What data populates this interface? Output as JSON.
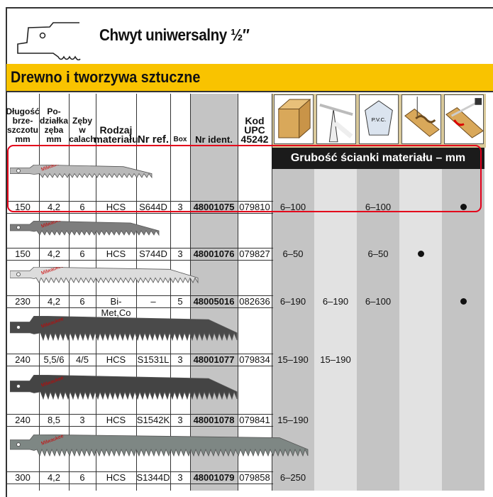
{
  "title": "Chwyt uniwersalny ½″",
  "category": "Drewno i tworzywa sztuczne",
  "headers": [
    "Długość brze- szczotu mm",
    "Po- działka zęba mm",
    "Zęby w calach",
    "Rodzaj materiału",
    "Nr ref.",
    "Box",
    "Nr ident.",
    "Kod UPC 45242"
  ],
  "application_icons": [
    "wood-beam-icon",
    "branch-icon",
    "pvc-icon",
    "curve-cut-icon",
    "plunge-cut-icon"
  ],
  "pvc_label": "P.V.C.",
  "thickness_header": "Grubość ścianki materiału – mm",
  "colors": {
    "yellow": "#f9c300",
    "highlight": "#e3001b",
    "gray_col": "#c4c4c4"
  },
  "rows": [
    {
      "length": "150",
      "pitch": "4,2",
      "tpi": "6",
      "material": "HCS",
      "ref": "S644D",
      "box": "3",
      "ident": "48001075",
      "upc": "079810",
      "results": [
        "6–100",
        "",
        "6–100",
        "",
        "●"
      ],
      "blade": "#b9b9b9"
    },
    {
      "length": "150",
      "pitch": "4,2",
      "tpi": "6",
      "material": "HCS",
      "ref": "S744D",
      "box": "3",
      "ident": "48001076",
      "upc": "079827",
      "results": [
        "6–50",
        "",
        "6–50",
        "●",
        ""
      ],
      "blade": "#7d7d7d"
    },
    {
      "length": "230",
      "pitch": "4,2",
      "tpi": "6",
      "material": "Bi-Met,Co",
      "ref": "–",
      "box": "5",
      "ident": "48005016",
      "upc": "082636",
      "results": [
        "6–190",
        "6–190",
        "6–100",
        "",
        "●"
      ],
      "blade": "#dcdcdc"
    },
    {
      "length": "240",
      "pitch": "5,5/6",
      "tpi": "4/5",
      "material": "HCS",
      "ref": "S1531L",
      "box": "3",
      "ident": "48001077",
      "upc": "079834",
      "results": [
        "15–190",
        "15–190",
        "",
        "",
        ""
      ],
      "blade": "#4a4a4a"
    },
    {
      "length": "240",
      "pitch": "8,5",
      "tpi": "3",
      "material": "HCS",
      "ref": "S1542K",
      "box": "3",
      "ident": "48001078",
      "upc": "079841",
      "results": [
        "15–190",
        "",
        "",
        "",
        ""
      ],
      "blade": "#444"
    },
    {
      "length": "300",
      "pitch": "4,2",
      "tpi": "6",
      "material": "HCS",
      "ref": "S1344D",
      "box": "3",
      "ident": "48001079",
      "upc": "079858",
      "results": [
        "6–250",
        "",
        "",
        "",
        ""
      ],
      "blade": "#7e8784"
    }
  ]
}
